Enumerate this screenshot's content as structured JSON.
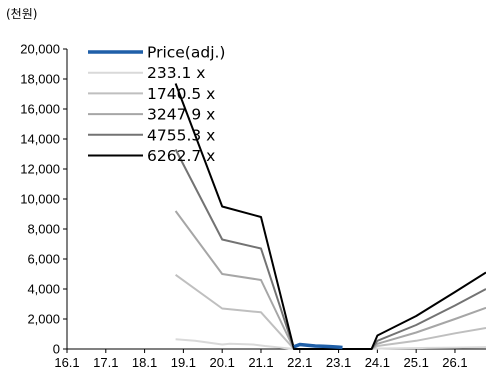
{
  "chart_data": {
    "type": "line",
    "unit_label": "(천원)",
    "categories": [
      "16.1",
      "17.1",
      "18.1",
      "19.1",
      "20.1",
      "21.1",
      "22.1",
      "23.1",
      "24.1",
      "25.1",
      "26.1"
    ],
    "ylim": [
      0,
      20000
    ],
    "yticks": [
      "0",
      "2,000",
      "4,000",
      "6,000",
      "8,000",
      "10,000",
      "12,000",
      "14,000",
      "16,000",
      "18,000",
      "20,000"
    ],
    "grid": false,
    "legend_position": "top-left",
    "series": [
      {
        "name": "Price(adj.)",
        "color": "#1F5FA8",
        "x": [
          21.95,
          22.1,
          22.3,
          22.5,
          22.7,
          22.9,
          23.1,
          23.2
        ],
        "y": [
          150,
          300,
          250,
          200,
          180,
          160,
          130,
          100
        ]
      },
      {
        "name": "233.1 x",
        "color": "#D9D9D9",
        "x": [
          18.9,
          19.4,
          20.1,
          20.3,
          20.9,
          21.2,
          21.95,
          23.95,
          24.1,
          24.5,
          25.1,
          25.4,
          26.1,
          26.5,
          26.9
        ],
        "y": [
          650,
          550,
          300,
          350,
          300,
          200,
          0,
          0,
          30,
          40,
          60,
          70,
          90,
          110,
          130
        ]
      },
      {
        "name": "1740.5 x",
        "color": "#BFBFBF",
        "x": [
          18.9,
          20.1,
          21.1,
          21.95,
          23.95,
          24.1,
          25.1,
          26.1,
          26.9
        ],
        "y": [
          4950,
          2700,
          2450,
          0,
          0,
          200,
          550,
          1050,
          1400
        ]
      },
      {
        "name": "3247.9 x",
        "color": "#A6A6A6",
        "x": [
          18.9,
          20.1,
          21.1,
          21.95,
          23.95,
          24.1,
          25.1,
          26.1,
          26.9
        ],
        "y": [
          9200,
          5000,
          4600,
          0,
          0,
          350,
          1100,
          2000,
          2750
        ]
      },
      {
        "name": "4755.3 x",
        "color": "#737373",
        "x": [
          18.9,
          20.1,
          21.1,
          21.95,
          23.95,
          24.1,
          25.1,
          26.1,
          26.9
        ],
        "y": [
          13300,
          7300,
          6700,
          0,
          0,
          550,
          1600,
          2900,
          4000
        ]
      },
      {
        "name": "6262.7 x",
        "color": "#000000",
        "x": [
          18.9,
          20.1,
          21.1,
          21.95,
          23.95,
          24.1,
          25.1,
          26.1,
          26.9
        ],
        "y": [
          17700,
          9500,
          8800,
          0,
          0,
          900,
          2200,
          3800,
          5100
        ]
      }
    ]
  }
}
